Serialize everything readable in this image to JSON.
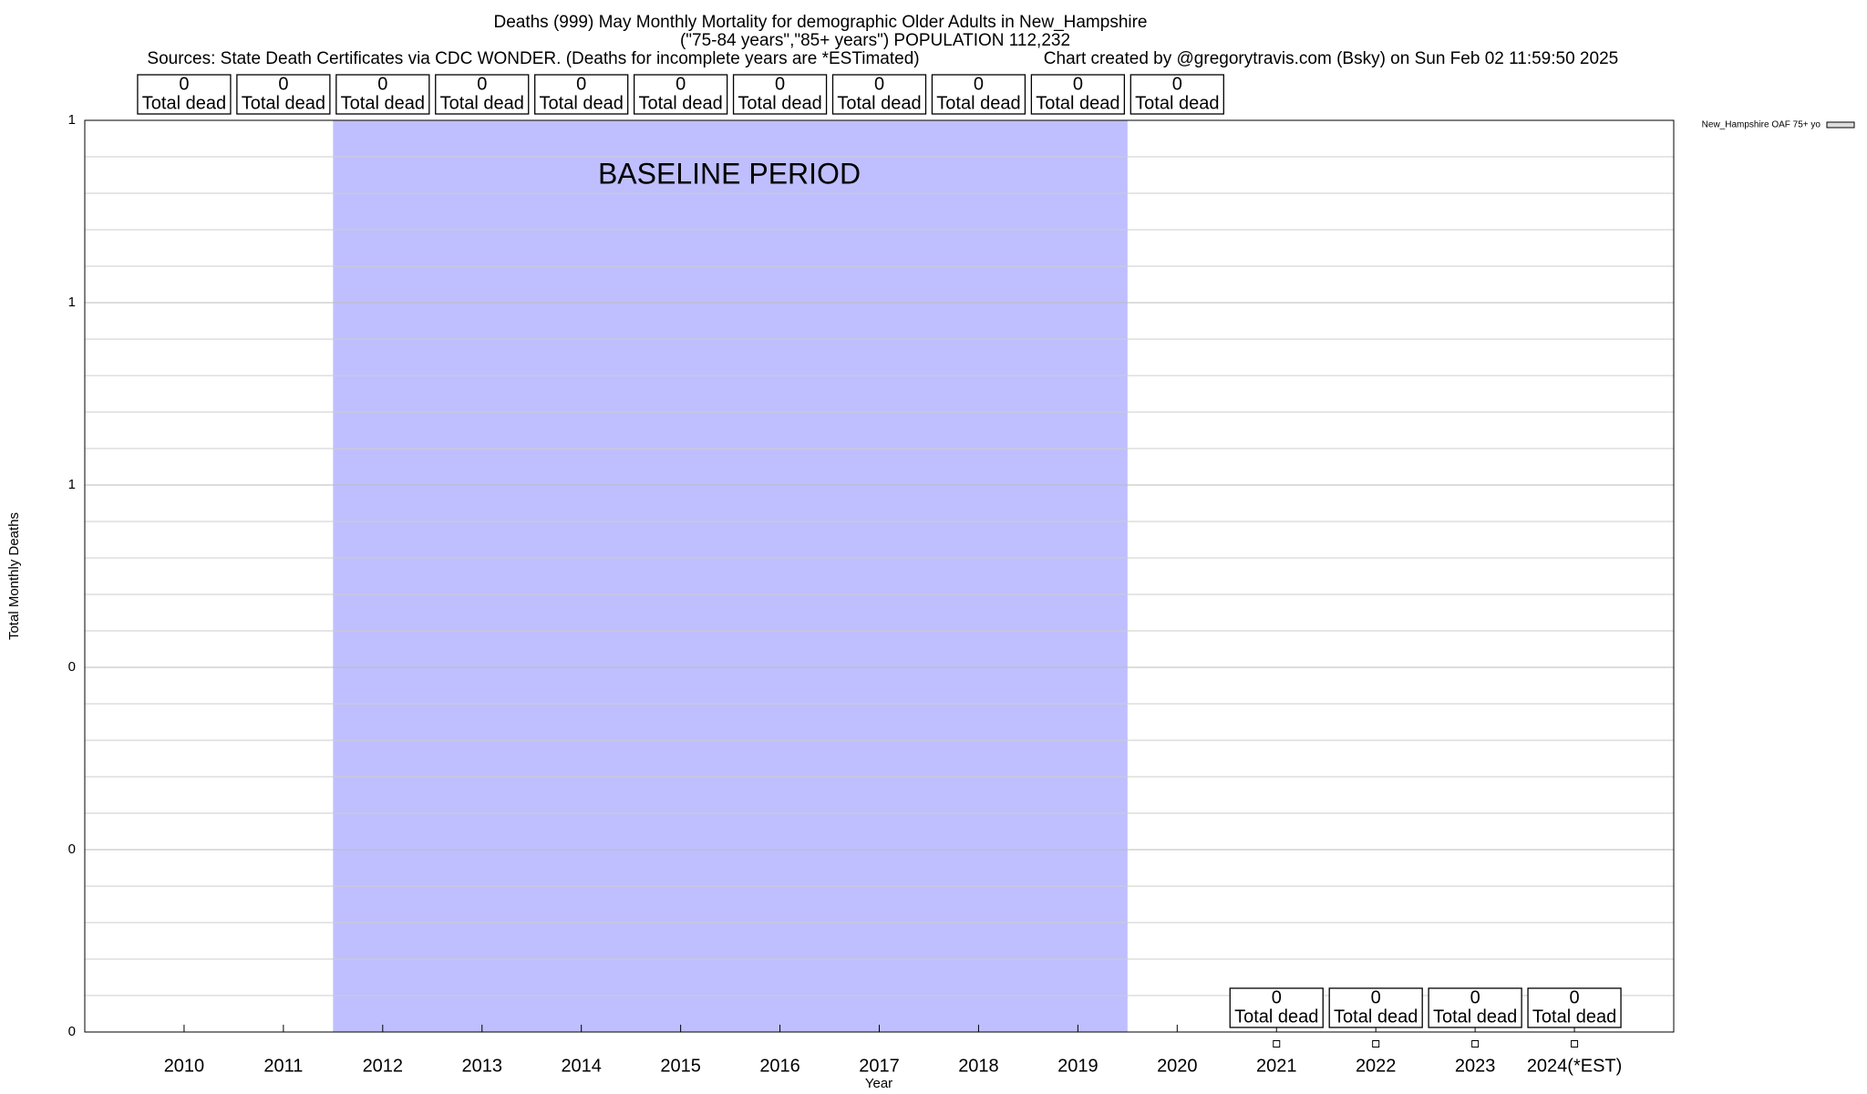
{
  "chart_data": {
    "type": "line",
    "title": "Deaths (999) May Monthly Mortality for demographic Older Adults in New_Hampshire",
    "subtitle": "(\"75-84 years\",\"85+ years\") POPULATION 112,232",
    "source": "Sources: State Death Certificates via CDC WONDER. (Deaths for incomplete years are *ESTimated)",
    "credit": "Chart created by @gregorytravis.com (Bsky) on Sun Feb 02 11:59:50 2025",
    "x_label": "Year",
    "y_label": "Total Monthly Deaths",
    "categories": [
      "2010",
      "2011",
      "2012",
      "2013",
      "2014",
      "2015",
      "2016",
      "2017",
      "2018",
      "2019",
      "2020",
      "2021",
      "2022",
      "2023",
      "2024(*EST)"
    ],
    "box_label": "Total dead",
    "baseline_totals": [
      0,
      0,
      0,
      0,
      0,
      0,
      0,
      0,
      0,
      0,
      0
    ],
    "baseline": {
      "label": "BASELINE PERIOD",
      "from": "2012",
      "to": "2019",
      "color": "#bfbfff"
    },
    "series": [
      {
        "name": "New_Hampshire OAF 75+ yo",
        "color": "#000000",
        "values": [
          null,
          null,
          null,
          null,
          null,
          null,
          null,
          null,
          null,
          null,
          null,
          0,
          0,
          0,
          0
        ]
      }
    ],
    "ylim": [
      0,
      1
    ],
    "yticks": [
      0,
      {
        "value": 0.2,
        "label": "0"
      },
      {
        "value": 0.4,
        "label": "0"
      },
      {
        "value": 0.6,
        "label": "1"
      },
      {
        "value": 0.8,
        "label": "1"
      },
      1
    ],
    "grid": true,
    "legend": "top-right"
  }
}
